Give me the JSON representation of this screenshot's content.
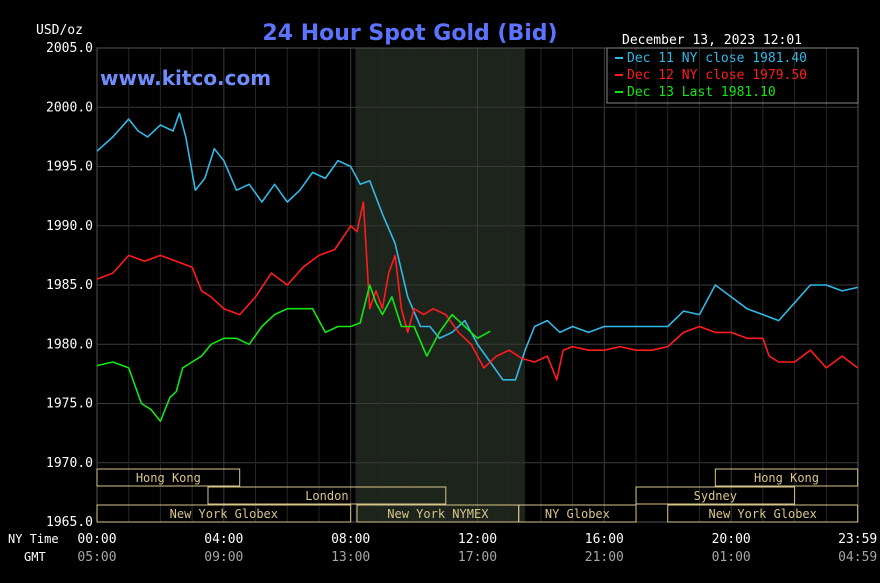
{
  "chart_data": {
    "type": "line",
    "title": "24 Hour Spot Gold (Bid)",
    "ylabel": "USD/oz",
    "ylim": [
      1965.0,
      2005.0
    ],
    "yticks": [
      "2005.0",
      "2000.0",
      "1995.0",
      "1990.0",
      "1985.0",
      "1980.0",
      "1975.0",
      "1970.0",
      "1965.0"
    ],
    "xlim": [
      0,
      24
    ],
    "xlabel_rows": [
      "NY Time",
      "GMT"
    ],
    "xticks_ny": [
      "00:00",
      "04:00",
      "08:00",
      "12:00",
      "16:00",
      "20:00",
      "23:59"
    ],
    "xticks_gmt": [
      "05:00",
      "09:00",
      "13:00",
      "17:00",
      "21:00",
      "01:00",
      "04:59"
    ],
    "grid": true,
    "legend": {
      "timestamp": "December 13, 2023 12:01",
      "placement": "top-right"
    },
    "watermark": "www.kitco.com",
    "highlight_region": [
      8.15,
      13.5
    ],
    "sessions": [
      {
        "label": "Hong Kong",
        "start": 0,
        "end": 4.5,
        "row": 0
      },
      {
        "label": "Hong Kong",
        "start": 19.5,
        "end": 23.99,
        "row": 0
      },
      {
        "label": "London",
        "start": 3.5,
        "end": 11.0,
        "row": 1
      },
      {
        "label": "Sydney",
        "start": 17.0,
        "end": 22.0,
        "row": 1
      },
      {
        "label": "New York Globex",
        "start": 0,
        "end": 8.0,
        "row": 2
      },
      {
        "label": "New York NYMEX",
        "start": 8.2,
        "end": 13.3,
        "row": 2
      },
      {
        "label": "NY Globex",
        "start": 13.3,
        "end": 17.0,
        "row": 2
      },
      {
        "label": "New York Globex",
        "start": 18.0,
        "end": 23.99,
        "row": 2
      }
    ],
    "series": [
      {
        "name": "Dec 11 NY close 1981.40",
        "color": "#33b8e6",
        "x": [
          0,
          0.5,
          1,
          1.3,
          1.6,
          2,
          2.4,
          2.6,
          2.8,
          3.1,
          3.4,
          3.7,
          4,
          4.4,
          4.8,
          5.2,
          5.6,
          6,
          6.4,
          6.8,
          7.2,
          7.6,
          8,
          8.3,
          8.6,
          9,
          9.4,
          9.8,
          10.2,
          10.5,
          10.8,
          11.2,
          11.6,
          12,
          12.4,
          12.8,
          13.2,
          13.5,
          13.8,
          14.2,
          14.6,
          15,
          15.5,
          16,
          16.5,
          17,
          17.5,
          18,
          18.5,
          19,
          19.5,
          20,
          20.5,
          21,
          21.5,
          22,
          22.5,
          23,
          23.5,
          23.99
        ],
        "values": [
          1996.3,
          1997.5,
          1999.0,
          1998.0,
          1997.5,
          1998.5,
          1998.0,
          1999.5,
          1997.5,
          1993.0,
          1994.0,
          1996.5,
          1995.5,
          1993.0,
          1993.5,
          1992.0,
          1993.5,
          1992.0,
          1993.0,
          1994.5,
          1994.0,
          1995.5,
          1995.0,
          1993.5,
          1993.8,
          1991.0,
          1988.5,
          1984.0,
          1981.5,
          1981.5,
          1980.5,
          1981.0,
          1982.0,
          1980.0,
          1978.5,
          1977.0,
          1977.0,
          1979.5,
          1981.5,
          1982.0,
          1981.0,
          1981.5,
          1981.0,
          1981.5,
          1981.5,
          1981.5,
          1981.5,
          1981.5,
          1982.8,
          1982.5,
          1985.0,
          1984.0,
          1983.0,
          1982.5,
          1982.0,
          1983.5,
          1985.0,
          1985.0,
          1984.5,
          1984.8
        ]
      },
      {
        "name": "Dec 12 NY close 1979.50",
        "color": "#ff1c1c",
        "x": [
          0,
          0.5,
          1,
          1.5,
          2,
          2.5,
          3,
          3.3,
          3.6,
          4,
          4.5,
          5,
          5.5,
          6,
          6.5,
          7,
          7.5,
          8,
          8.2,
          8.4,
          8.6,
          8.8,
          9,
          9.2,
          9.4,
          9.6,
          9.8,
          10,
          10.3,
          10.6,
          11,
          11.4,
          11.8,
          12.2,
          12.6,
          13,
          13.4,
          13.8,
          14.2,
          14.5,
          14.7,
          15,
          15.5,
          16,
          16.5,
          17,
          17.5,
          18,
          18.5,
          19,
          19.5,
          20,
          20.5,
          21,
          21.2,
          21.5,
          22,
          22.5,
          23,
          23.5,
          23.99
        ],
        "values": [
          1985.5,
          1986.0,
          1987.5,
          1987.0,
          1987.5,
          1987.0,
          1986.5,
          1984.5,
          1984.0,
          1983.0,
          1982.5,
          1984.0,
          1986.0,
          1985.0,
          1986.5,
          1987.5,
          1988.0,
          1990.0,
          1989.5,
          1992.0,
          1983.0,
          1984.5,
          1983.0,
          1986.0,
          1987.5,
          1983.0,
          1981.0,
          1983.0,
          1982.5,
          1983.0,
          1982.5,
          1981.0,
          1980.0,
          1978.0,
          1979.0,
          1979.5,
          1978.8,
          1978.5,
          1979.0,
          1977.0,
          1979.5,
          1979.8,
          1979.5,
          1979.5,
          1979.8,
          1979.5,
          1979.5,
          1979.8,
          1981.0,
          1981.5,
          1981.0,
          1981.0,
          1980.5,
          1980.5,
          1979.0,
          1978.5,
          1978.5,
          1979.5,
          1978.0,
          1979.0,
          1978.0
        ]
      },
      {
        "name": "Dec 13 Last 1981.10",
        "color": "#14e614",
        "x": [
          0,
          0.5,
          1,
          1.4,
          1.7,
          2,
          2.3,
          2.5,
          2.7,
          3,
          3.3,
          3.6,
          4,
          4.4,
          4.8,
          5.2,
          5.6,
          6,
          6.4,
          6.8,
          7.2,
          7.6,
          8,
          8.3,
          8.6,
          8.8,
          9,
          9.3,
          9.6,
          10,
          10.4,
          10.8,
          11.2,
          11.6,
          12,
          12.4
        ],
        "values": [
          1978.2,
          1978.5,
          1978.0,
          1975.0,
          1974.5,
          1973.5,
          1975.5,
          1976.0,
          1978.0,
          1978.5,
          1979.0,
          1980.0,
          1980.5,
          1980.5,
          1980.0,
          1981.5,
          1982.5,
          1983.0,
          1983.0,
          1983.0,
          1981.0,
          1981.5,
          1981.5,
          1981.8,
          1985.0,
          1983.5,
          1982.5,
          1984.0,
          1981.5,
          1981.5,
          1979.0,
          1981.0,
          1982.5,
          1981.5,
          1980.5,
          1981.1
        ]
      }
    ]
  }
}
